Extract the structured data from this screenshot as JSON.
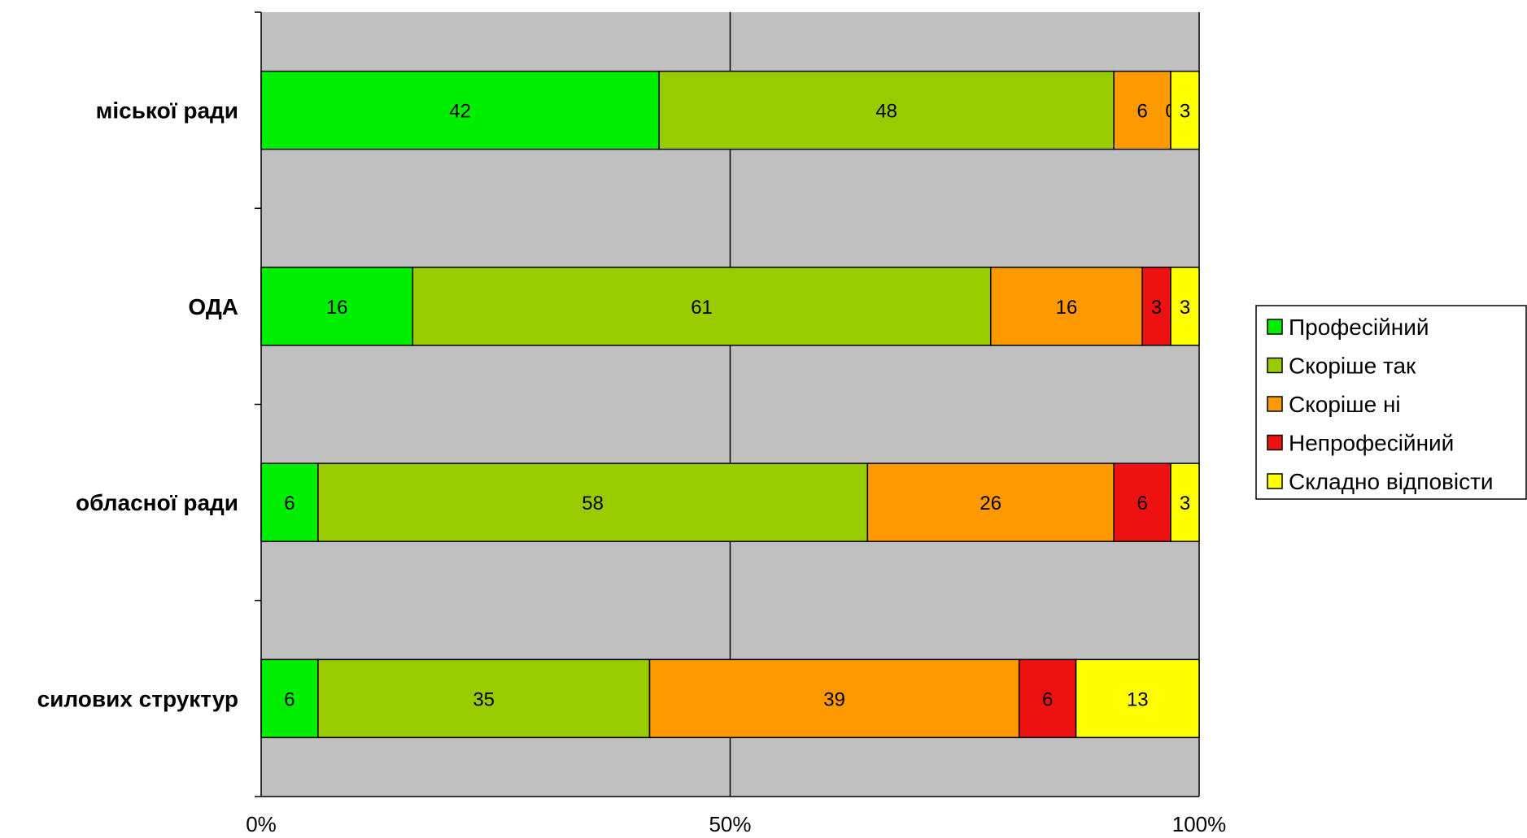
{
  "chart_data": {
    "type": "bar",
    "orientation": "horizontal",
    "stacked": "percent",
    "title": "",
    "xlabel": "",
    "ylabel": "",
    "xlim": [
      0,
      100
    ],
    "x_ticks": [
      "0%",
      "50%",
      "100%"
    ],
    "categories": [
      "міської ради",
      "ОДА",
      "обласної ради",
      "силових структур"
    ],
    "series": [
      {
        "name": "Професійний",
        "color": "#00ee00",
        "values": [
          42,
          16,
          6,
          6
        ]
      },
      {
        "name": "Скоріше так",
        "color": "#99cc00",
        "values": [
          48,
          61,
          58,
          35
        ]
      },
      {
        "name": "Скоріше ні",
        "color": "#ff9900",
        "values": [
          6,
          16,
          26,
          39
        ]
      },
      {
        "name": "Непрофесійний",
        "color": "#ee1111",
        "values": [
          0,
          3,
          6,
          6
        ]
      },
      {
        "name": "Складно відповісти",
        "color": "#ffff00",
        "values": [
          3,
          3,
          3,
          13
        ]
      }
    ],
    "grid": true,
    "plot_background": "#c0c0c0",
    "legend_position": "right"
  }
}
